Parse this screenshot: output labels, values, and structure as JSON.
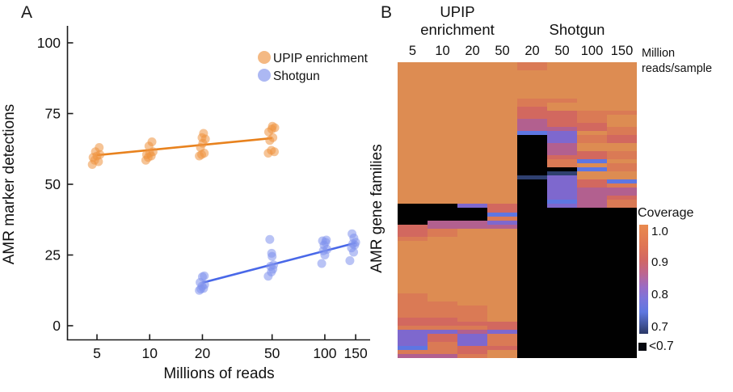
{
  "panel_a": {
    "label": "A",
    "x_axis": {
      "label": "Millions of reads",
      "scale": "log10",
      "ticks": [
        "5",
        "10",
        "20",
        "50",
        "100",
        "150"
      ]
    },
    "y_axis": {
      "label": "AMR marker detections",
      "ticks": [
        "0",
        "25",
        "50",
        "75",
        "100"
      ]
    },
    "legend": {
      "items": [
        {
          "label": "UPIP enrichment",
          "color": "#EE9440"
        },
        {
          "label": "Shotgun",
          "color": "#7F92EC"
        }
      ]
    }
  },
  "panel_b": {
    "label": "B",
    "group_headers": [
      {
        "label": "UPIP enrichment"
      },
      {
        "label": "Shotgun"
      }
    ],
    "column_labels": [
      "5",
      "10",
      "20",
      "50",
      "20",
      "50",
      "100",
      "150"
    ],
    "unit_label": {
      "line1": "Million",
      "line2": "reads/sample"
    },
    "y_label": "AMR gene families",
    "colorbar": {
      "title": "Coverage",
      "tick_labels": [
        "1.0",
        "0.9",
        "0.8",
        "0.7"
      ],
      "under_label": "<0.7",
      "under_color": "#06080f",
      "gradient_stops": [
        "#E98A4E 0%",
        "#DF7454 20%",
        "#D26763 32%",
        "#BC6692 45%",
        "#9A6BC4 57%",
        "#7B74DA 68%",
        "#5E77E0 80%",
        "#44569E 91%",
        "#2A3866 100%"
      ]
    }
  },
  "chart_data": [
    {
      "type": "scatter",
      "title": "",
      "xlabel": "Millions of reads",
      "ylabel": "AMR marker detections",
      "x_scale": "log10",
      "x_ticks": [
        5,
        10,
        20,
        50,
        100,
        150
      ],
      "y_ticks": [
        0,
        25,
        50,
        75,
        100
      ],
      "xlim": [
        3.9,
        165
      ],
      "ylim": [
        -5,
        105
      ],
      "legend_position": "upper-right-inside",
      "series": [
        {
          "name": "UPIP enrichment",
          "point_color": "#EE9440",
          "line_color": "#E8821E",
          "trend": {
            "x": [
              5,
              50
            ],
            "y": [
              60.3,
              66.3
            ]
          },
          "points": [
            [
              4.7,
              57
            ],
            [
              4.85,
              58.5
            ],
            [
              5.1,
              58
            ],
            [
              4.75,
              59.5
            ],
            [
              5.0,
              60
            ],
            [
              5.2,
              60.5
            ],
            [
              4.9,
              61.5
            ],
            [
              5.15,
              63
            ],
            [
              9.5,
              58.5
            ],
            [
              9.8,
              59.5
            ],
            [
              10.2,
              60
            ],
            [
              9.6,
              60.5
            ],
            [
              10.0,
              61
            ],
            [
              10.45,
              61.5
            ],
            [
              9.9,
              63.5
            ],
            [
              10.3,
              65
            ],
            [
              19.2,
              60
            ],
            [
              19.8,
              60.5
            ],
            [
              20.5,
              61
            ],
            [
              19.5,
              63
            ],
            [
              20.1,
              64.5
            ],
            [
              20.8,
              66
            ],
            [
              19.9,
              66.5
            ],
            [
              20.3,
              68
            ],
            [
              47.5,
              61
            ],
            [
              51.5,
              61.5
            ],
            [
              49.5,
              62
            ],
            [
              48.5,
              65.5
            ],
            [
              50.5,
              66.5
            ],
            [
              47.8,
              68.5
            ],
            [
              49.8,
              69.5
            ],
            [
              51.8,
              70
            ],
            [
              50.2,
              70.5
            ]
          ]
        },
        {
          "name": "Shotgun",
          "point_color": "#7F92EC",
          "line_color": "#4968E8",
          "trend": {
            "x": [
              20,
              150
            ],
            "y": [
              15.2,
              29.3
            ]
          },
          "points": [
            [
              19.2,
              12.5
            ],
            [
              19.6,
              13
            ],
            [
              20.3,
              13.2
            ],
            [
              19.9,
              14
            ],
            [
              20.6,
              14.5
            ],
            [
              19.4,
              15.3
            ],
            [
              20.0,
              17.3
            ],
            [
              20.5,
              17.6
            ],
            [
              47.5,
              17.5
            ],
            [
              49.5,
              19
            ],
            [
              50.5,
              20
            ],
            [
              49.0,
              21
            ],
            [
              51.0,
              21.5
            ],
            [
              50.0,
              24.5
            ],
            [
              49.7,
              25.6
            ],
            [
              48.5,
              30.5
            ],
            [
              96,
              22
            ],
            [
              100,
              25
            ],
            [
              98,
              26.5
            ],
            [
              103,
              27
            ],
            [
              99,
              28.5
            ],
            [
              101,
              29.5
            ],
            [
              97,
              30
            ],
            [
              102,
              30.3
            ],
            [
              139,
              23
            ],
            [
              146,
              26
            ],
            [
              142,
              27.5
            ],
            [
              148,
              28.5
            ],
            [
              144.5,
              29
            ],
            [
              150,
              29.5
            ],
            [
              146.5,
              31
            ],
            [
              143,
              32.5
            ]
          ]
        }
      ]
    },
    {
      "type": "heatmap",
      "ylabel": "AMR gene families",
      "column_groups": [
        "UPIP enrichment",
        "Shotgun"
      ],
      "columns": [
        "5",
        "10",
        "20",
        "50",
        "20",
        "50",
        "100",
        "150"
      ],
      "columns_unit": "Million reads/sample",
      "colorbar": {
        "title": "Coverage",
        "ticks": [
          1.0,
          0.9,
          0.8,
          0.7
        ],
        "under_label": "<0.7"
      },
      "coverage_key": {
        "a": 1.0,
        "b": 0.96,
        "c": 0.92,
        "d": 0.87,
        "e": 0.82,
        "f": 0.76,
        "g": 0.71,
        "k": "<0.7"
      },
      "palette": {
        "a": "#DD8C52",
        "b": "#DA7A55",
        "c": "#D2685F",
        "d": "#B2608F",
        "e": "#7E68CE",
        "f": "#5E76E2",
        "g": "#2F4070",
        "k": "#010101"
      },
      "rows": [
        "aaaabaaa",
        "aaaabaaa",
        "aaaaaaaa",
        "aaaaaaaa",
        "aaaaaaaa",
        "aaaaaaaa",
        "aaaaaaaa",
        "aaaaaaaa",
        "aaaaaaaa",
        "aaaabbaa",
        "aaaabaaa",
        "aaaacaaa",
        "aaaaccbb",
        "aaaaccba",
        "aaaadcba",
        "aaaadcca",
        "aaaaddcb",
        "aaaafeab",
        "aaaakebc",
        "aaaakebc",
        "aaaakdaa",
        "aaaakdaa",
        "aaaakdcb",
        "aaaakccb",
        "aaaakbfa",
        "aaaakbab",
        "aaaakkfb",
        "aaaakgaa",
        "aaaageaa",
        "aaaakecf",
        "aaaakecb",
        "aaaakedd",
        "aaaakedd",
        "aaaakedc",
        "aaaakfdb",
        "kkeckedb",
        "kkkckkkk",
        "kkkfkkkk",
        "kkkbkkkk",
        "kddekkkk",
        "cdddkkkk",
        "cbaakkkk",
        "cbaakkkk",
        "baaakkkk",
        "aaaakkkk",
        "aaaakkkk",
        "aaaakkkk",
        "aaaakkkk",
        "aaaakkkk",
        "aaaakkkk",
        "aaaakkkk",
        "aaaakkkk",
        "aaaakkkk",
        "aaaakkkk",
        "aaaakkkk",
        "aaaakkkk",
        "aaaakkkk",
        "baaakkkk",
        "baaakkkk",
        "bbaakkkk",
        "bbbakkkk",
        "bbbakkkk",
        "bbbakkkk",
        "ccbakkkk",
        "cccckkkk",
        "bbbckkkk",
        "eedekkkk",
        "ecebkkkk",
        "ecebkkkk",
        "ebebkkkk",
        "fbcckkkk",
        "bbcakkkk",
        "ddbakkkk"
      ]
    }
  ]
}
